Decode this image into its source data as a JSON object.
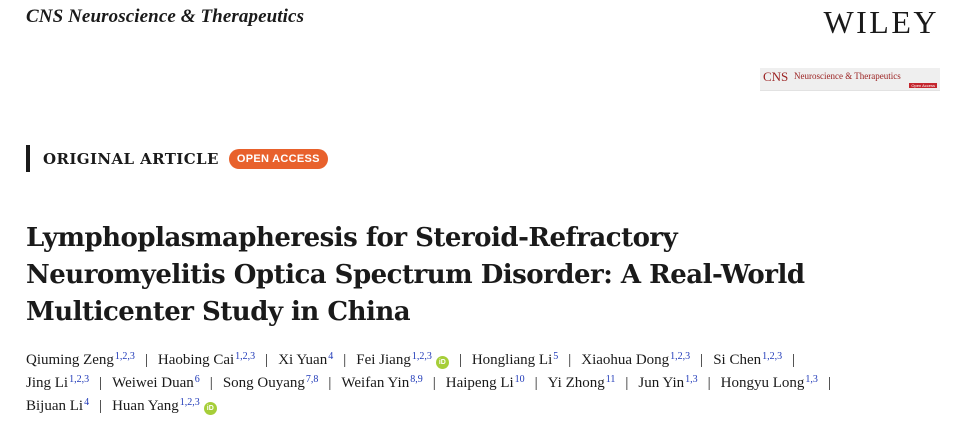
{
  "header": {
    "journal_name": "CNS Neuroscience & Therapeutics",
    "publisher": "WILEY",
    "journal_thumbnail": {
      "abbr": "CNS",
      "title": "Neuroscience & Therapeutics",
      "badge": "Open Access"
    }
  },
  "article": {
    "type_label": "ORIGINAL ARTICLE",
    "access_badge": "OPEN ACCESS",
    "title_lines": [
      "Lymphoplasmapheresis for Steroid-Refractory",
      "Neuromyelitis Optica Spectrum Disorder: A Real-World",
      "Multicenter Study in China"
    ],
    "orcid_icon": "iD",
    "separator": "|",
    "authors": [
      {
        "name": "Qiuming Zeng",
        "aff": "1,2,3"
      },
      {
        "name": "Haobing Cai",
        "aff": "1,2,3"
      },
      {
        "name": "Xi Yuan",
        "aff": "4"
      },
      {
        "name": "Fei Jiang",
        "aff": "1,2,3"
      },
      {
        "name": "Hongliang Li",
        "aff": "5"
      },
      {
        "name": "Xiaohua Dong",
        "aff": "1,2,3"
      },
      {
        "name": "Si Chen",
        "aff": "1,2,3"
      },
      {
        "name": "Jing Li",
        "aff": "1,2,3"
      },
      {
        "name": "Weiwei Duan",
        "aff": "6"
      },
      {
        "name": "Song Ouyang",
        "aff": "7,8"
      },
      {
        "name": "Weifan Yin",
        "aff": "8,9"
      },
      {
        "name": "Haipeng Li",
        "aff": "10"
      },
      {
        "name": "Yi Zhong",
        "aff": "11"
      },
      {
        "name": "Jun Yin",
        "aff": "1,3"
      },
      {
        "name": "Hongyu Long",
        "aff": "1,3"
      },
      {
        "name": "Bijuan Li",
        "aff": "4"
      },
      {
        "name": "Huan Yang",
        "aff": "1,2,3"
      }
    ]
  }
}
